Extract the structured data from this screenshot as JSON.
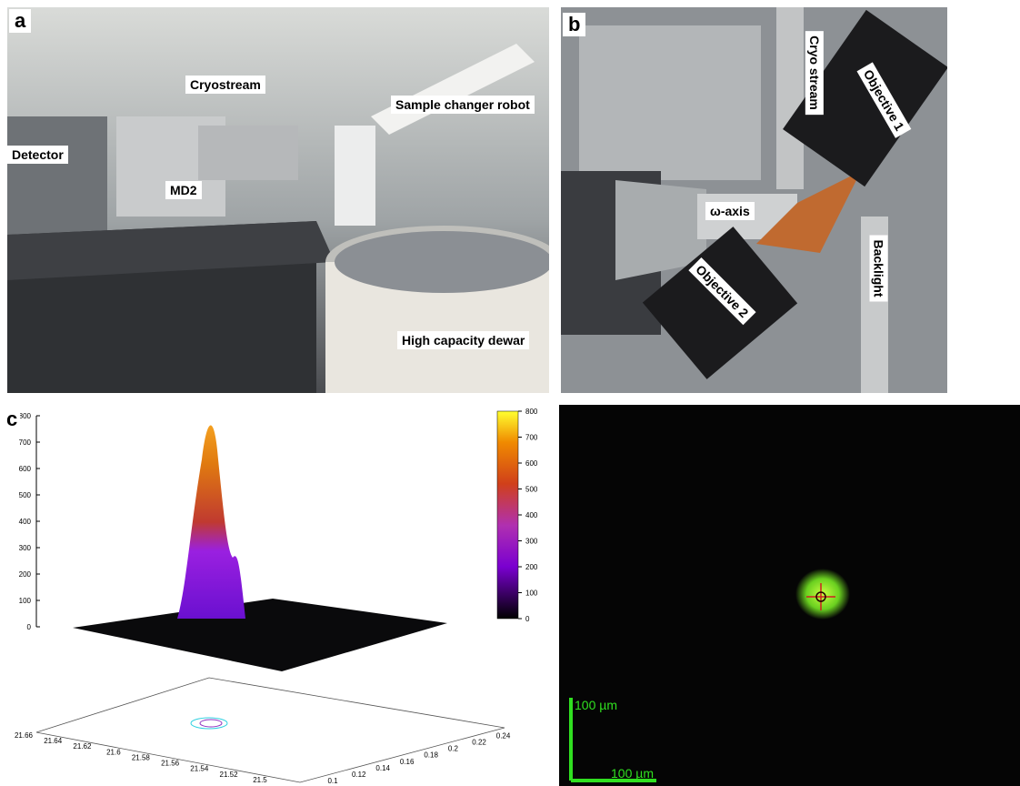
{
  "panels": [
    {
      "label": "a",
      "annotations": [
        "Cryostream",
        "Sample changer robot",
        "Detector",
        "MD2",
        "High capacity dewar"
      ]
    },
    {
      "label": "b",
      "annotations": [
        "Cryo stream",
        "Objective 1",
        "ω-axis",
        "Objective 2",
        "Backlight"
      ]
    },
    {
      "label": "c",
      "z_ticks": [
        800,
        700,
        600,
        500,
        400,
        300,
        200,
        100,
        0
      ],
      "colorbar_ticks": [
        800,
        700,
        600,
        500,
        400,
        300,
        200,
        100,
        0
      ],
      "x_ticks": [
        "21.66",
        "21.64",
        "21.62",
        "21.6",
        "21.58",
        "21.56",
        "21.54",
        "21.52",
        "21.5"
      ],
      "y_ticks": [
        "0.1",
        "0.12",
        "0.14",
        "0.16",
        "0.18",
        "0.2",
        "0.22",
        "0.24"
      ]
    },
    {
      "scale_bars": [
        "100 µm",
        "100 µm"
      ]
    }
  ]
}
